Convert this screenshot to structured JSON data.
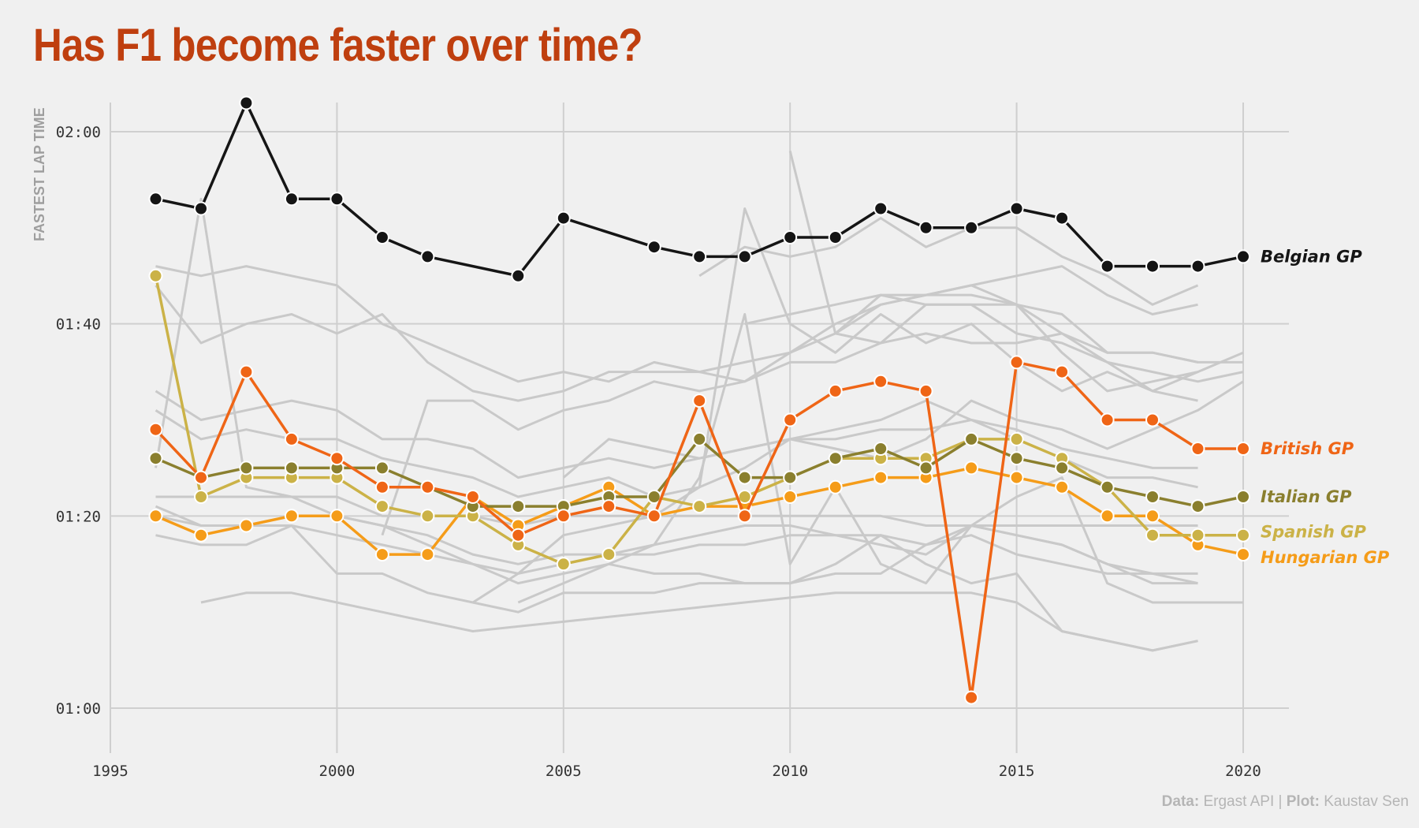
{
  "title": "Has F1 become faster over time?",
  "caption": {
    "data_label": "Data:",
    "data_value": "Ergast API",
    "separator": "|",
    "plot_label": "Plot:",
    "plot_value": "Kaustav Sen"
  },
  "colors": {
    "background": "#f0f0f0",
    "grid": "#cfcfcf",
    "title": "#bf3f0f",
    "background_series": "#c9c9c9"
  },
  "chart_data": {
    "type": "line",
    "title": "Has F1 become faster over time?",
    "xlabel": "",
    "ylabel": "FASTEST LAP TIME",
    "xlim": [
      1995,
      2021
    ],
    "ylim": [
      60,
      123
    ],
    "x_ticks": [
      1995,
      2000,
      2005,
      2010,
      2015,
      2020
    ],
    "x_tick_labels": [
      "1995",
      "2000",
      "2005",
      "2010",
      "2015",
      "2020"
    ],
    "y_ticks": [
      60,
      80,
      100,
      120
    ],
    "y_tick_labels": [
      "01:00",
      "01:20",
      "01:40",
      "02:00"
    ],
    "y_units": "seconds (lap time)",
    "grid": true,
    "series": [
      {
        "name": "Belgian GP",
        "color": "#151515",
        "x": [
          1996,
          1997,
          1998,
          1999,
          2000,
          2001,
          2002,
          2004,
          2005,
          2007,
          2008,
          2009,
          2010,
          2011,
          2012,
          2013,
          2014,
          2015,
          2016,
          2017,
          2018,
          2019,
          2020
        ],
        "y": [
          113,
          112,
          123,
          113,
          113,
          109,
          107,
          105,
          111,
          108,
          107,
          107,
          109,
          109,
          112,
          110,
          110,
          112,
          111,
          106,
          106,
          106,
          107
        ]
      },
      {
        "name": "British GP",
        "color": "#ef6516",
        "x": [
          1996,
          1997,
          1998,
          1999,
          2000,
          2001,
          2002,
          2003,
          2004,
          2005,
          2006,
          2007,
          2008,
          2009,
          2010,
          2011,
          2012,
          2013,
          2014,
          2015,
          2016,
          2017,
          2018,
          2019,
          2020
        ],
        "y": [
          89,
          84,
          95,
          88,
          86,
          83,
          83,
          82,
          78,
          80,
          81,
          80,
          92,
          80,
          90,
          93,
          94,
          93,
          61.1,
          96,
          95,
          90,
          90,
          87,
          87
        ]
      },
      {
        "name": "Italian GP",
        "color": "#8a7f2e",
        "x": [
          1996,
          1997,
          1998,
          1999,
          2000,
          2001,
          2002,
          2003,
          2004,
          2005,
          2006,
          2007,
          2008,
          2009,
          2010,
          2011,
          2012,
          2013,
          2014,
          2015,
          2016,
          2017,
          2018,
          2019,
          2020
        ],
        "y": [
          86,
          84,
          85,
          85,
          85,
          85,
          83,
          81,
          81,
          81,
          82,
          82,
          88,
          84,
          84,
          86,
          87,
          85,
          88,
          86,
          85,
          83,
          82,
          81,
          82
        ]
      },
      {
        "name": "Spanish GP",
        "color": "#cbb247",
        "x": [
          1996,
          1997,
          1998,
          1999,
          2000,
          2001,
          2002,
          2003,
          2004,
          2005,
          2006,
          2007,
          2008,
          2009,
          2010,
          2011,
          2012,
          2013,
          2014,
          2015,
          2016,
          2017,
          2018,
          2019,
          2020
        ],
        "y": [
          105,
          82,
          84,
          84,
          84,
          81,
          80,
          80,
          77,
          75,
          76,
          82,
          81,
          82,
          84,
          86,
          86,
          86,
          88,
          88,
          86,
          83,
          78,
          78,
          78
        ]
      },
      {
        "name": "Hungarian GP",
        "color": "#f59c19",
        "x": [
          1996,
          1997,
          1998,
          1999,
          2000,
          2001,
          2002,
          2003,
          2004,
          2005,
          2006,
          2007,
          2008,
          2009,
          2010,
          2011,
          2012,
          2013,
          2014,
          2015,
          2016,
          2017,
          2018,
          2019,
          2020
        ],
        "y": [
          80,
          78,
          79,
          80,
          80,
          76,
          76,
          82,
          79,
          81,
          83,
          80,
          81,
          81,
          82,
          83,
          84,
          84,
          85,
          84,
          83,
          80,
          80,
          77,
          76
        ]
      }
    ],
    "background_series": [
      {
        "x": [
          1996,
          1997,
          1998,
          1999,
          2000,
          2001,
          2002,
          2003,
          2004,
          2005,
          2006,
          2007,
          2008,
          2009,
          2010,
          2011,
          2012,
          2013,
          2014,
          2015,
          2016,
          2017,
          2018,
          2019
        ],
        "y": [
          106,
          105,
          106,
          105,
          104,
          100,
          98,
          96,
          94,
          95,
          94,
          96,
          95,
          96,
          97,
          100,
          102,
          103,
          104,
          105,
          106,
          103,
          101,
          102
        ]
      },
      {
        "x": [
          1996,
          1997,
          1998,
          1999,
          2000,
          2001,
          2002,
          2003,
          2004,
          2005,
          2006,
          2007,
          2008,
          2009,
          2010,
          2011,
          2012,
          2013,
          2014,
          2015,
          2016,
          2017,
          2018,
          2019
        ],
        "y": [
          104,
          98,
          100,
          101,
          99,
          101,
          96,
          93,
          92,
          93,
          95,
          95,
          95,
          94,
          97,
          99,
          102,
          103,
          103,
          102,
          101,
          97,
          97,
          96
        ]
      },
      {
        "x": [
          1996,
          1997,
          1998,
          1999,
          2000,
          2001,
          2002,
          2003,
          2004,
          2005,
          2006,
          2007,
          2008,
          2009,
          2010,
          2011,
          2012,
          2013,
          2014,
          2015,
          2016,
          2017,
          2018,
          2019
        ],
        "y": [
          93,
          90,
          91,
          92,
          91,
          88,
          88,
          87,
          84,
          85,
          86,
          85,
          86,
          87,
          88,
          89,
          90,
          92,
          90,
          89,
          87,
          86,
          85,
          85
        ]
      },
      {
        "x": [
          1996,
          1997,
          1998,
          1999,
          2000,
          2001,
          2002,
          2003,
          2004,
          2005,
          2006,
          2007,
          2008,
          2009,
          2010,
          2011,
          2012,
          2013,
          2014,
          2015,
          2016,
          2017,
          2018,
          2019
        ],
        "y": [
          91,
          88,
          89,
          88,
          88,
          86,
          85,
          84,
          82,
          83,
          84,
          82,
          83,
          85,
          88,
          88,
          89,
          89,
          90,
          88,
          86,
          84,
          84,
          83
        ]
      },
      {
        "x": [
          1996,
          1997,
          1998,
          1999,
          2000,
          2001,
          2002,
          2003,
          2004,
          2005,
          2006,
          2007,
          2008,
          2009,
          2010,
          2011,
          2012,
          2013,
          2014,
          2015,
          2016,
          2017,
          2018,
          2019
        ],
        "y": [
          81,
          79,
          79,
          79,
          78,
          77,
          76,
          75,
          74,
          75,
          76,
          76,
          77,
          77,
          78,
          78,
          78,
          77,
          79,
          78,
          77,
          75,
          74,
          74
        ]
      },
      {
        "x": [
          1996,
          1997,
          1998,
          1999,
          2000,
          2001,
          2002,
          2003,
          2004,
          2005,
          2006,
          2007,
          2008,
          2009,
          2010,
          2011,
          2012,
          2013,
          2014,
          2015,
          2016,
          2017,
          2018,
          2019
        ],
        "y": [
          78,
          77,
          77,
          79,
          74,
          74,
          72,
          71,
          70,
          72,
          72,
          72,
          73,
          73,
          73,
          75,
          78,
          75,
          73,
          74,
          68,
          67,
          66,
          67
        ]
      },
      {
        "x": [
          1996,
          1997,
          1998,
          1999,
          2000,
          2001,
          2002,
          2003,
          2004,
          2005,
          2006,
          2007,
          2008,
          2009,
          2010,
          2011,
          2012,
          2013,
          2014,
          2015,
          2016,
          2017,
          2018,
          2019
        ],
        "y": [
          82,
          82,
          82,
          82,
          82,
          80,
          80,
          80,
          79,
          80,
          80,
          80,
          80,
          80,
          80,
          80,
          80,
          79,
          79,
          79,
          79,
          79,
          79,
          79
        ]
      },
      {
        "x": [
          1996,
          1997,
          1998,
          1999,
          2000,
          2001,
          2002,
          2003,
          2004,
          2005,
          2006,
          2007,
          2008,
          2009,
          2010,
          2011,
          2012,
          2013,
          2014,
          2015,
          2016,
          2017,
          2018,
          2019
        ],
        "y": [
          80,
          79,
          79,
          80,
          80,
          79,
          78,
          76,
          75,
          76,
          76,
          77,
          78,
          79,
          79,
          78,
          77,
          76,
          79,
          78,
          77,
          75,
          73,
          73
        ]
      },
      {
        "x": [
          1997,
          1998,
          1999,
          2000,
          2001,
          2002,
          2003,
          2004,
          2005,
          2006,
          2007,
          2008,
          2009,
          2010,
          2011,
          2012,
          2013,
          2014,
          2015,
          2016,
          2017,
          2018,
          2019
        ],
        "y": [
          71,
          72,
          72,
          71,
          70,
          69,
          68,
          68.5,
          69,
          69.5,
          70,
          70.5,
          71,
          71.5,
          72,
          72,
          72,
          72,
          71,
          68,
          67,
          66,
          67
        ]
      },
      {
        "x": [
          1996,
          1997,
          1998,
          1999,
          2000,
          2001,
          2002,
          2003,
          2004,
          2005,
          2006,
          2007,
          2008,
          2009,
          2010,
          2011,
          2012,
          2013,
          2014,
          2015,
          2016,
          2017,
          2018,
          2019
        ],
        "y": [
          85,
          113,
          83,
          82,
          80,
          79,
          77,
          75,
          73,
          74,
          75,
          74,
          74,
          73,
          73,
          74,
          74,
          77,
          78,
          76,
          75,
          74,
          74,
          73
        ]
      },
      {
        "x": [
          2004,
          2005,
          2006,
          2007,
          2008,
          2009,
          2010,
          2011,
          2012,
          2013,
          2014,
          2015,
          2016,
          2017,
          2018,
          2019,
          2020
        ],
        "y": [
          71,
          73,
          75,
          77,
          84,
          101,
          75,
          83,
          75,
          73,
          79,
          82,
          84,
          73,
          71,
          71,
          71
        ]
      },
      {
        "x": [
          2008,
          2009,
          2010,
          2011,
          2012,
          2013,
          2014,
          2015,
          2016,
          2017,
          2018,
          2019
        ],
        "y": [
          105,
          108,
          107,
          108,
          111,
          108,
          110,
          110,
          107,
          105,
          102,
          104
        ]
      },
      {
        "x": [
          2003,
          2004,
          2005,
          2006,
          2007,
          2008,
          2009,
          2010,
          2011,
          2012,
          2013,
          2014,
          2015,
          2016,
          2017,
          2018,
          2019
        ],
        "y": [
          71,
          74,
          78,
          79,
          80,
          83,
          112,
          100,
          97,
          101,
          98,
          100,
          96,
          93,
          95,
          93,
          92
        ]
      },
      {
        "x": [
          2009,
          2010,
          2011,
          2012,
          2013,
          2014,
          2015,
          2016,
          2017,
          2018,
          2019,
          2020
        ],
        "y": [
          100,
          101,
          102,
          103,
          103,
          104,
          102,
          99,
          96,
          93,
          95,
          97
        ]
      },
      {
        "x": [
          2005,
          2006,
          2007,
          2008,
          2009,
          2010,
          2011,
          2012,
          2013,
          2014,
          2015,
          2016,
          2017,
          2018,
          2019,
          2020
        ],
        "y": [
          84,
          88,
          87,
          86,
          87,
          88,
          87,
          86,
          88,
          92,
          90,
          89,
          87,
          89,
          91,
          94
        ]
      },
      {
        "x": [
          2001,
          2002,
          2003,
          2004,
          2005,
          2006,
          2007,
          2008,
          2009,
          2010,
          2011,
          2012,
          2013,
          2014,
          2015,
          2016,
          2017,
          2018,
          2019,
          2020
        ],
        "y": [
          78,
          92,
          92,
          89,
          91,
          92,
          94,
          93,
          94,
          96,
          96,
          98,
          99,
          98,
          98,
          99,
          97,
          97,
          96,
          96
        ]
      },
      {
        "x": [
          2010,
          2011,
          2012,
          2013,
          2014,
          2015,
          2016,
          2017,
          2018,
          2019
        ],
        "y": [
          118,
          99,
          98,
          102,
          102,
          102,
          97,
          93,
          94,
          95
        ]
      },
      {
        "x": [
          2011,
          2012,
          2013,
          2014,
          2015,
          2016,
          2017,
          2018,
          2019,
          2020
        ],
        "y": [
          99,
          103,
          102,
          102,
          99,
          98,
          96,
          95,
          94,
          95
        ]
      }
    ]
  }
}
